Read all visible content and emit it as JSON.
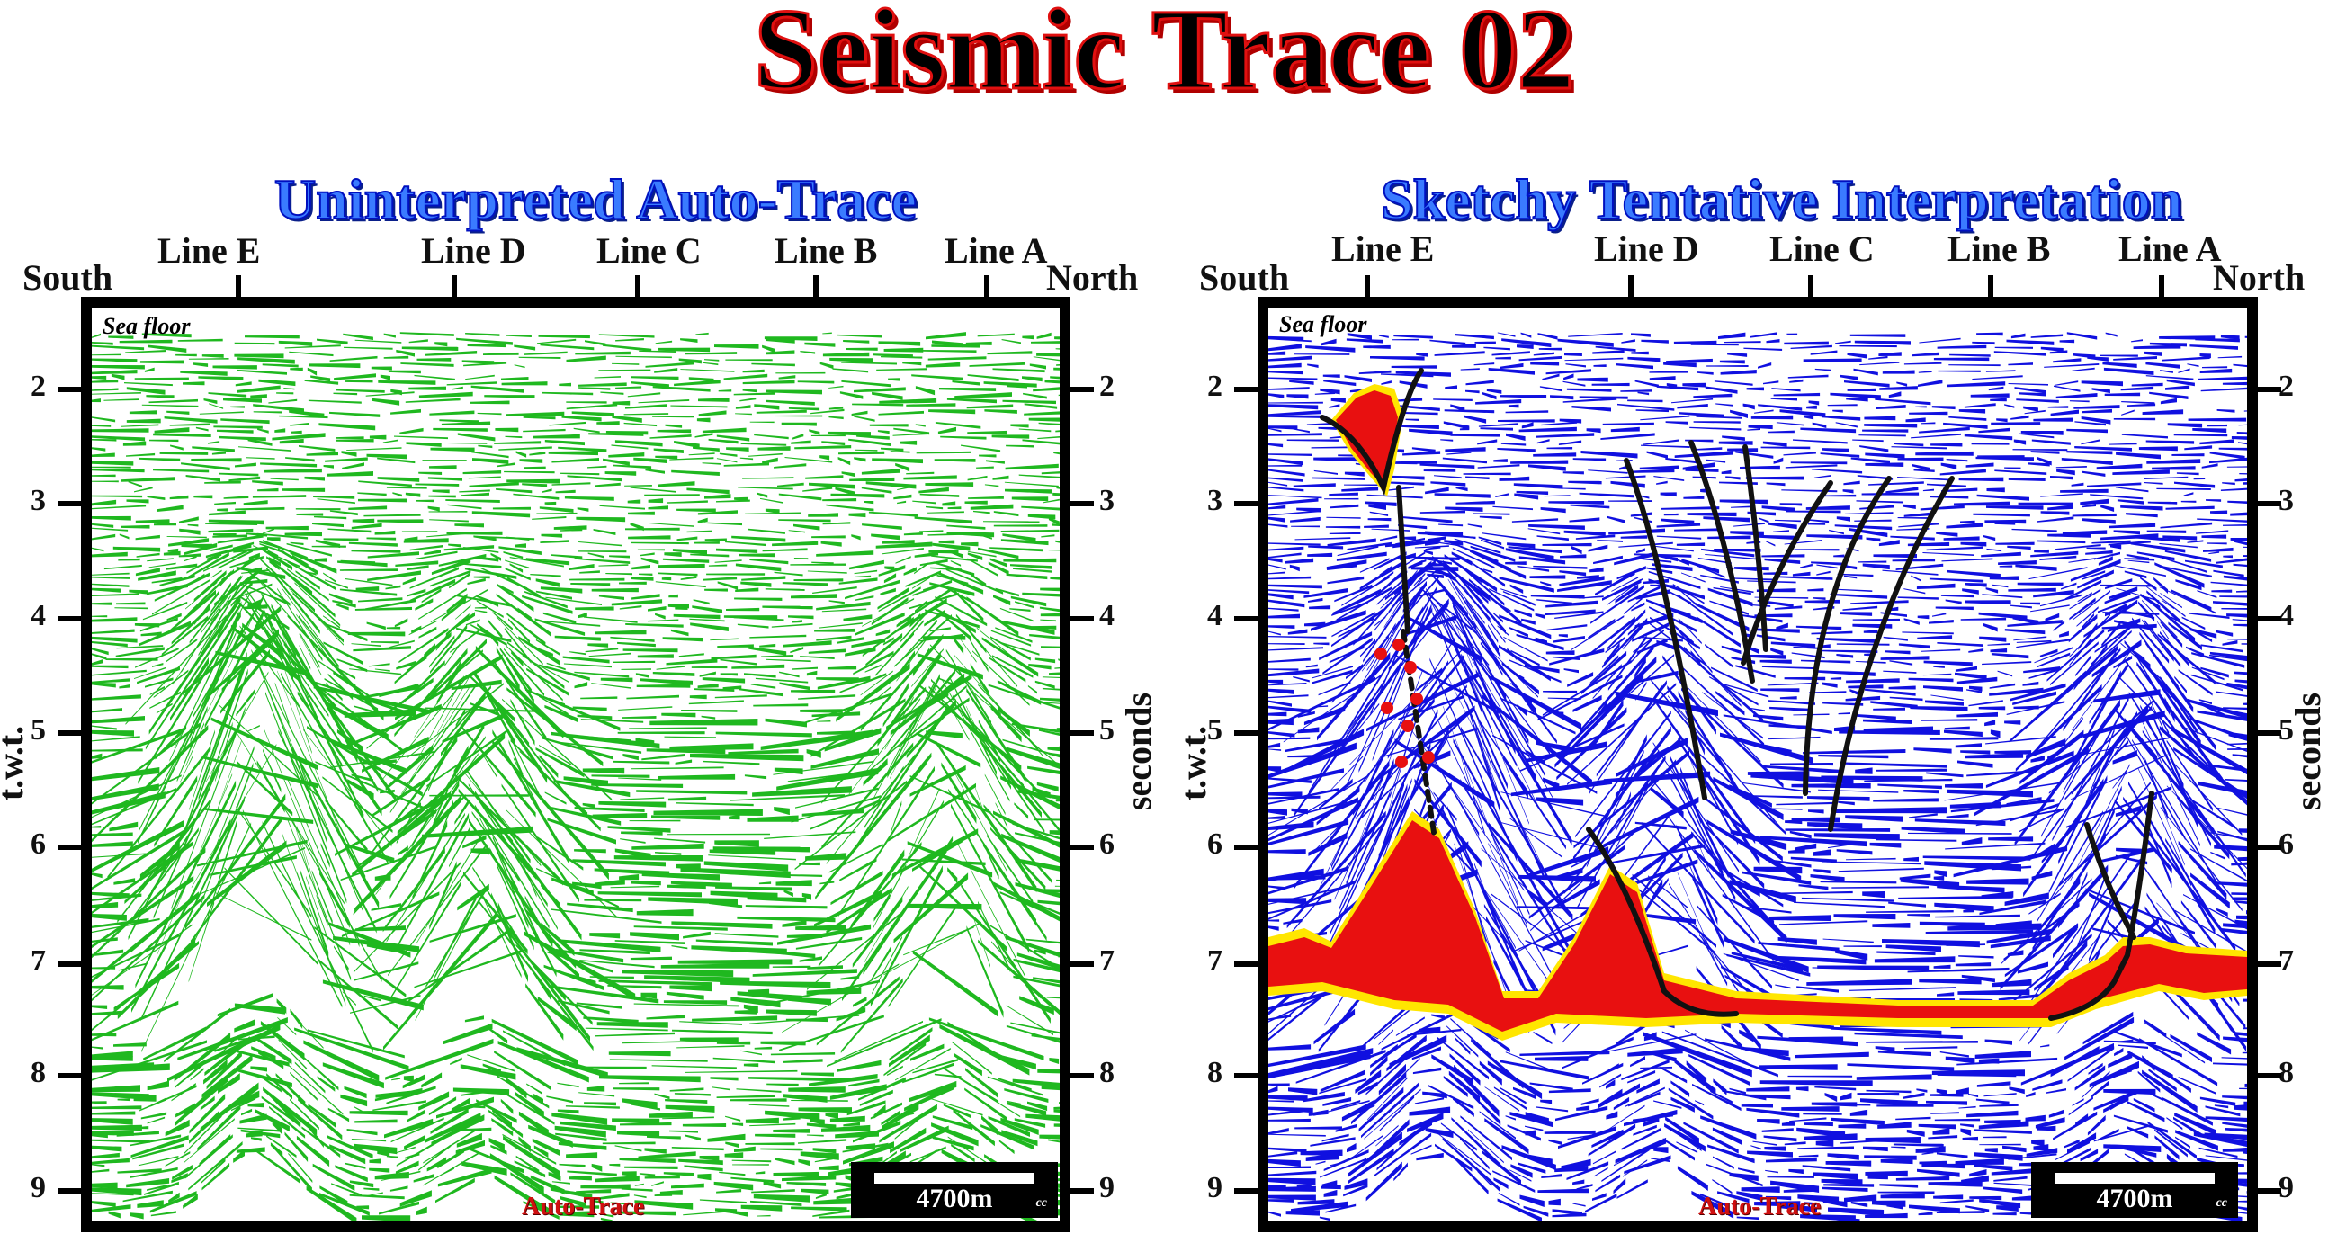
{
  "title": "Seismic Trace 02",
  "colors": {
    "left_reflectors": "#1fb81f",
    "right_reflectors": "#1010e0",
    "interp_body": "#e81010",
    "interp_rim": "#ffe600",
    "fault": "#111111",
    "title_outline": "#e01010",
    "panel_title": "#3a7bff"
  },
  "panels": [
    {
      "title": "Uninterpreted Auto-Trace",
      "south": "South",
      "north": "North",
      "lines": [
        "Line E",
        "Line D",
        "Line C",
        "Line B",
        "Line A"
      ],
      "left_axis_label": "t.w.t.",
      "right_axis_label": "seconds",
      "ticks": [
        "2",
        "3",
        "4",
        "5",
        "6",
        "7",
        "8",
        "9"
      ],
      "sea_floor": "Sea floor",
      "scale": "4700m",
      "cc": "cc",
      "auto_trace": "Auto-Trace"
    },
    {
      "title": "Sketchy Tentative Interpretation",
      "south": "South",
      "north": "North",
      "lines": [
        "Line E",
        "Line D",
        "Line C",
        "Line B",
        "Line A"
      ],
      "left_axis_label": "t.w.t.",
      "right_axis_label": "seconds",
      "ticks": [
        "2",
        "3",
        "4",
        "5",
        "6",
        "7",
        "8",
        "9"
      ],
      "sea_floor": "Sea floor",
      "scale": "4700m",
      "cc": "cc",
      "auto_trace": "Auto-Trace"
    }
  ]
}
